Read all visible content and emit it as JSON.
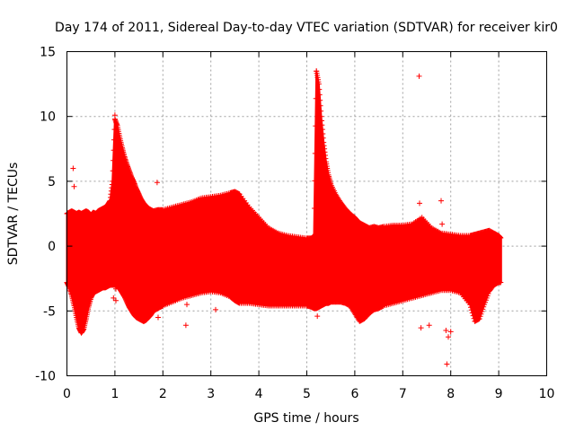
{
  "chart_data": {
    "type": "scatter",
    "title": "Day 174 of 2011, Sidereal Day-to-day VTEC variation (SDTVAR) for receiver kir0",
    "xlabel": "GPS time / hours",
    "ylabel": "SDTVAR / TECUs",
    "xlim": [
      0,
      10
    ],
    "ylim": [
      -10,
      15
    ],
    "xticks": [
      0,
      1,
      2,
      3,
      4,
      5,
      6,
      7,
      8,
      9,
      10
    ],
    "yticks": [
      -10,
      -5,
      0,
      5,
      10,
      15
    ],
    "grid": true,
    "marker": "plus",
    "series_color": "#ff0000",
    "band_envelope": {
      "description": "dense cloud of data points: upper and lower bound per time",
      "x": [
        0.0,
        0.05,
        0.1,
        0.15,
        0.2,
        0.25,
        0.3,
        0.35,
        0.4,
        0.45,
        0.5,
        0.55,
        0.6,
        0.65,
        0.7,
        0.75,
        0.8,
        0.85,
        0.9,
        0.95,
        1.0,
        1.05,
        1.1,
        1.15,
        1.2,
        1.25,
        1.3,
        1.35,
        1.4,
        1.45,
        1.5,
        1.55,
        1.6,
        1.65,
        1.7,
        1.75,
        1.8,
        1.9,
        2.0,
        2.2,
        2.4,
        2.6,
        2.8,
        3.0,
        3.2,
        3.4,
        3.5,
        3.6,
        3.8,
        4.0,
        4.2,
        4.4,
        4.6,
        4.8,
        5.0,
        5.1,
        5.15,
        5.2,
        5.25,
        5.3,
        5.35,
        5.4,
        5.45,
        5.5,
        5.6,
        5.7,
        5.8,
        5.9,
        6.0,
        6.1,
        6.2,
        6.3,
        6.4,
        6.5,
        6.6,
        6.8,
        7.0,
        7.2,
        7.4,
        7.6,
        7.8,
        8.0,
        8.2,
        8.4,
        8.5,
        8.6,
        8.7,
        8.8,
        8.9,
        9.0,
        9.05
      ],
      "upper": [
        2.5,
        2.6,
        2.7,
        2.6,
        2.5,
        2.6,
        2.5,
        2.6,
        2.7,
        2.6,
        2.4,
        2.6,
        2.5,
        2.7,
        2.8,
        2.9,
        3.0,
        3.2,
        3.5,
        5.0,
        9.8,
        9.3,
        8.4,
        7.6,
        6.9,
        6.3,
        5.8,
        5.3,
        4.9,
        4.4,
        4.0,
        3.6,
        3.3,
        3.1,
        2.9,
        2.8,
        2.7,
        2.8,
        2.8,
        3.0,
        3.2,
        3.4,
        3.7,
        3.8,
        3.9,
        4.1,
        4.2,
        4.0,
        3.0,
        2.2,
        1.4,
        1.0,
        0.8,
        0.7,
        0.6,
        0.6,
        0.8,
        13.5,
        12.5,
        10.0,
        8.0,
        6.5,
        5.5,
        4.8,
        4.0,
        3.4,
        2.9,
        2.5,
        2.2,
        1.8,
        1.6,
        1.4,
        1.5,
        1.4,
        1.5,
        1.6,
        1.6,
        1.7,
        2.2,
        1.4,
        1.0,
        0.9,
        0.8,
        0.8,
        0.9,
        1.0,
        1.1,
        1.2,
        1.0,
        0.8,
        0.6
      ],
      "lower": [
        -2.8,
        -3.2,
        -3.8,
        -4.6,
        -5.5,
        -6.3,
        -6.7,
        -6.4,
        -5.6,
        -4.7,
        -4.0,
        -3.6,
        -3.5,
        -3.4,
        -3.3,
        -3.2,
        -3.2,
        -3.1,
        -3.0,
        -3.0,
        -3.0,
        -3.1,
        -3.3,
        -3.6,
        -3.9,
        -4.3,
        -4.7,
        -5.0,
        -5.3,
        -5.5,
        -5.6,
        -5.7,
        -5.8,
        -5.7,
        -5.5,
        -5.3,
        -5.0,
        -4.8,
        -4.6,
        -4.3,
        -4.0,
        -3.8,
        -3.6,
        -3.5,
        -3.6,
        -3.9,
        -4.2,
        -4.4,
        -4.4,
        -4.5,
        -4.6,
        -4.6,
        -4.6,
        -4.6,
        -4.6,
        -4.7,
        -4.8,
        -4.8,
        -4.7,
        -4.6,
        -4.5,
        -4.4,
        -4.4,
        -4.3,
        -4.3,
        -4.3,
        -4.4,
        -4.6,
        -5.2,
        -5.8,
        -5.6,
        -5.2,
        -4.9,
        -4.8,
        -4.6,
        -4.4,
        -4.2,
        -4.0,
        -3.8,
        -3.6,
        -3.4,
        -3.4,
        -3.6,
        -4.5,
        -5.8,
        -5.6,
        -4.5,
        -3.5,
        -3.0,
        -2.8,
        -2.8
      ]
    },
    "outliers": {
      "x": [
        0.13,
        0.15,
        0.16,
        1.0,
        1.02,
        1.02,
        1.88,
        1.9,
        2.48,
        3.1,
        4.06,
        4.4,
        5.14,
        5.2,
        5.22,
        6.15,
        7.34,
        7.35,
        7.38,
        7.55,
        7.8,
        7.82,
        7.9,
        7.92,
        7.95,
        8.55,
        8.0,
        0.95,
        0.97,
        2.5
      ],
      "y": [
        6.0,
        4.6,
        -0.4,
        10.1,
        -4.2,
        -3.3,
        4.9,
        -5.5,
        -6.1,
        -4.9,
        -4.1,
        -3.8,
        -0.3,
        13.5,
        -5.4,
        -4.1,
        13.1,
        3.3,
        -6.3,
        -6.1,
        3.5,
        1.7,
        -6.5,
        -9.1,
        -7.0,
        -5.2,
        -6.6,
        3.6,
        -4.0,
        -4.5
      ]
    }
  }
}
